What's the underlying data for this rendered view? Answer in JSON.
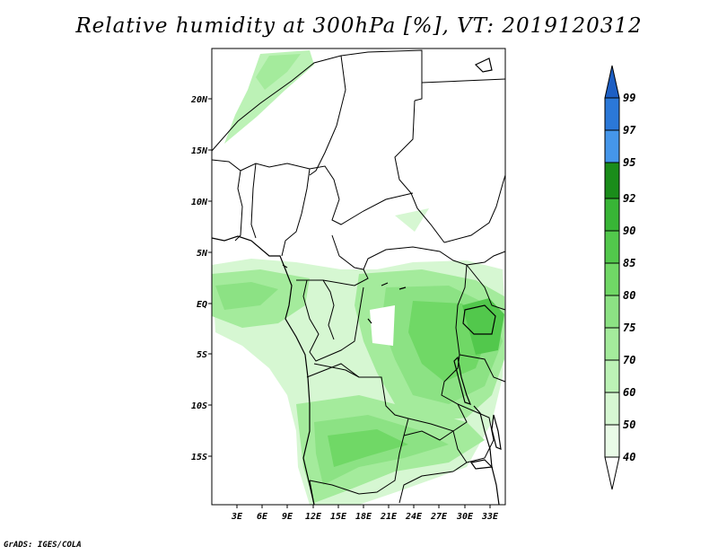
{
  "title": "Relative humidity at 300hPa [%], VT: 2019120312",
  "credit": "GrADS: IGES/COLA",
  "map": {
    "lat_labels": [
      "20N",
      "15N",
      "10N",
      "5N",
      "EQ",
      "5S",
      "10S",
      "15S"
    ],
    "lon_labels": [
      "3E",
      "6E",
      "9E",
      "12E",
      "15E",
      "18E",
      "21E",
      "24E",
      "27E",
      "30E",
      "33E"
    ]
  },
  "colorbar": {
    "levels": [
      "40",
      "50",
      "60",
      "70",
      "75",
      "80",
      "85",
      "90",
      "92",
      "95",
      "97",
      "99"
    ],
    "colors": [
      "#ffffff",
      "#e9fbe7",
      "#d6f7d2",
      "#bcf2b6",
      "#a4eb9c",
      "#8ce284",
      "#70d866",
      "#52c84c",
      "#38b536",
      "#259f25",
      "#1a8c1a",
      "#4596ea",
      "#2b78d8",
      "#1d5fc4"
    ]
  }
}
